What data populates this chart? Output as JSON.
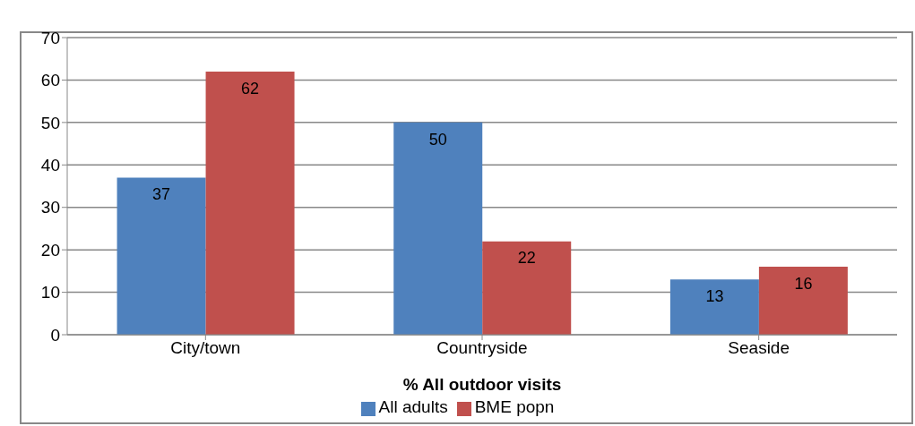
{
  "chart_data": {
    "type": "bar",
    "xlabel": "% All outdoor visits",
    "categories": [
      "City/town",
      "Countryside",
      "Seaside"
    ],
    "series": [
      {
        "name": "All adults",
        "color": "#4f81bd",
        "values": [
          37,
          50,
          13
        ]
      },
      {
        "name": "BME popn",
        "color": "#c0504d",
        "values": [
          62,
          22,
          16
        ]
      }
    ],
    "ylim": [
      0,
      70
    ],
    "yticks": [
      0,
      10,
      20,
      30,
      40,
      50,
      60,
      70
    ],
    "grid": "y",
    "legend": "bottom",
    "data_labels": true
  }
}
